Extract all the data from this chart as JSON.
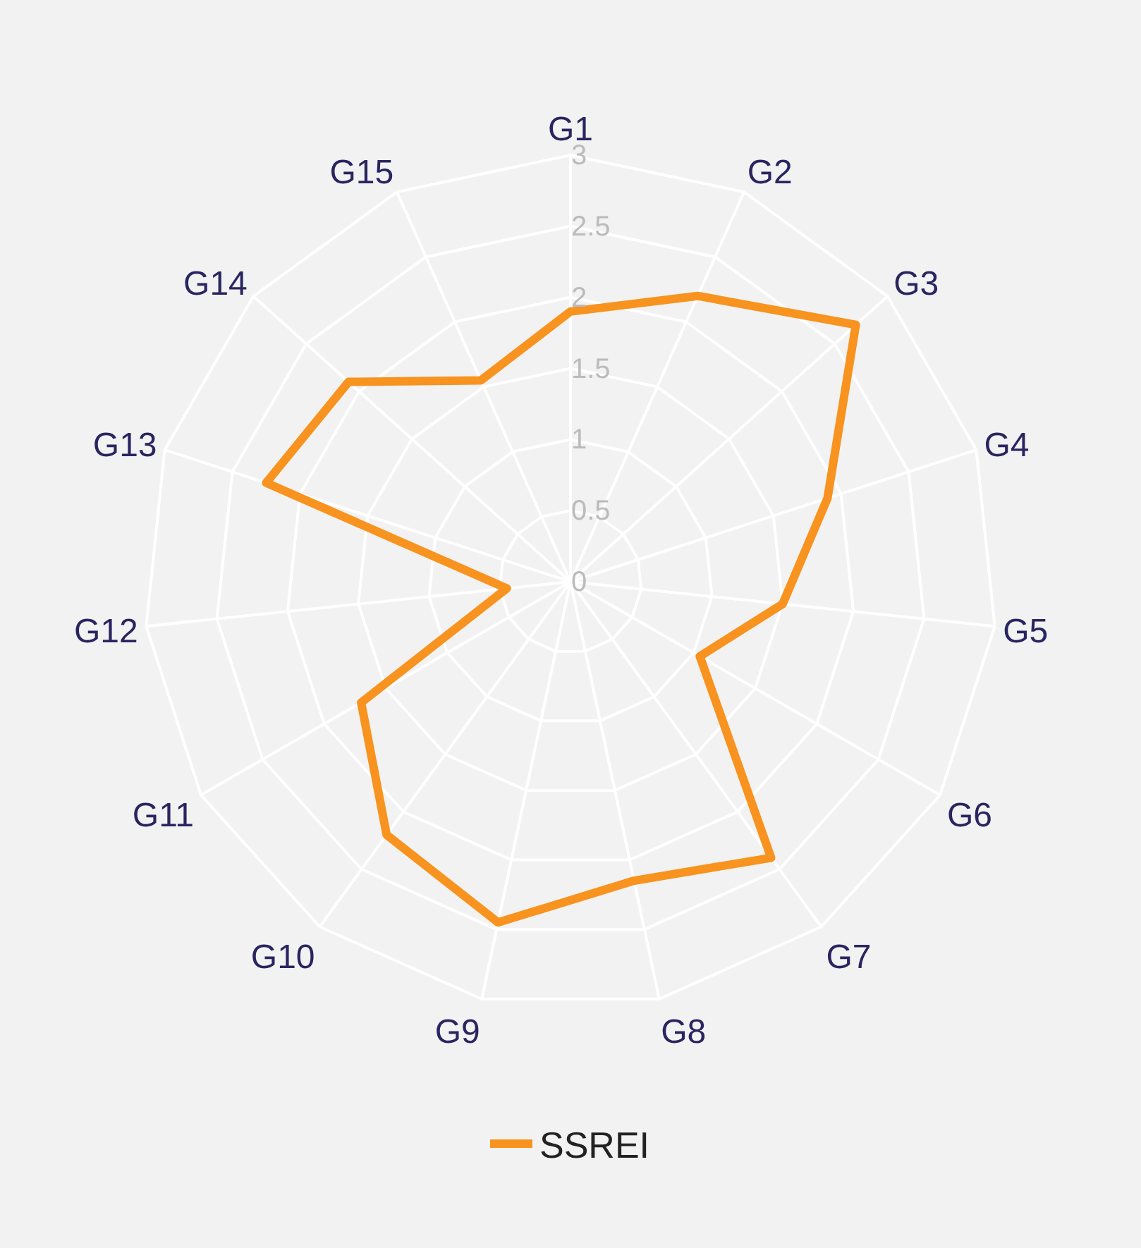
{
  "chart_data": {
    "type": "radar",
    "categories": [
      "G1",
      "G2",
      "G3",
      "G4",
      "G5",
      "G6",
      "G7",
      "G8",
      "G9",
      "G10",
      "G11",
      "G12",
      "G13",
      "G14",
      "G15"
    ],
    "series": [
      {
        "name": "SSREI",
        "color": "#f7931e",
        "values": [
          1.9,
          2.2,
          2.7,
          1.9,
          1.5,
          1.05,
          2.4,
          2.15,
          2.45,
          2.2,
          1.7,
          0.45,
          2.25,
          2.1,
          1.55
        ]
      }
    ],
    "ylim": [
      0,
      3
    ],
    "yticks": [
      0,
      0.5,
      1,
      1.5,
      2,
      2.5,
      3
    ],
    "grid": true,
    "legend": "bottom",
    "marker": "none",
    "line_style": "solid"
  }
}
